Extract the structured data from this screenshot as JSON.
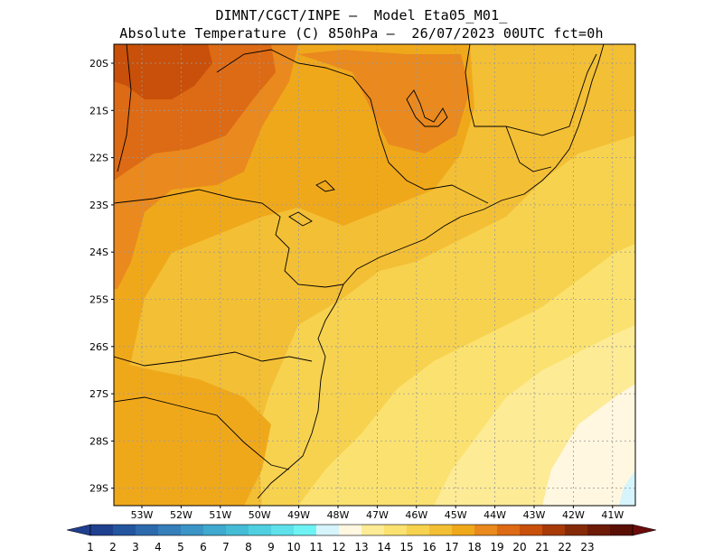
{
  "title_line1": "DIMNT/CGCT/INPE –  Model Eta05_M01_",
  "title_line2": "Absolute Temperature (C) 850hPa –  26/07/2023 00UTC fct=0h",
  "lat_labels": [
    "20S",
    "21S",
    "22S",
    "23S",
    "24S",
    "25S",
    "26S",
    "27S",
    "28S",
    "29S"
  ],
  "lon_labels": [
    "53W",
    "52W",
    "51W",
    "50W",
    "49W",
    "48W",
    "47W",
    "46W",
    "45W",
    "44W",
    "43W",
    "42W",
    "41W"
  ],
  "colorbar": {
    "labels": [
      "1",
      "2",
      "3",
      "4",
      "5",
      "6",
      "7",
      "8",
      "9",
      "10",
      "11",
      "12",
      "13",
      "14",
      "15",
      "16",
      "17",
      "18",
      "19",
      "20",
      "21",
      "22",
      "23"
    ],
    "colors": [
      "#1f3f8f",
      "#24559f",
      "#2d6aad",
      "#357fba",
      "#3b95c6",
      "#3fa9cf",
      "#45bcd6",
      "#4fcfe0",
      "#5ee1ea",
      "#6ef3f5",
      "#d6f4fb",
      "#fff7e0",
      "#fdeb96",
      "#fbe270",
      "#f7d24f",
      "#f3bf35",
      "#f0a81b",
      "#e9891e",
      "#dd6a14",
      "#c8500a",
      "#a73a06",
      "#852a07",
      "#6d1a06",
      "#5a0f05"
    ],
    "left_color": "#1f3f8f",
    "right_color": "#6b0b0b"
  },
  "fill_colors": {
    "t12": "#fff7e0",
    "t13": "#fdeb96",
    "t14": "#fbe270",
    "t15": "#f7d24f",
    "t16": "#f3bf35",
    "t17": "#f0a81b",
    "t18": "#e9891e",
    "t19": "#dd6a14",
    "t20": "#c8500a",
    "cold": "#d6f4fb"
  }
}
